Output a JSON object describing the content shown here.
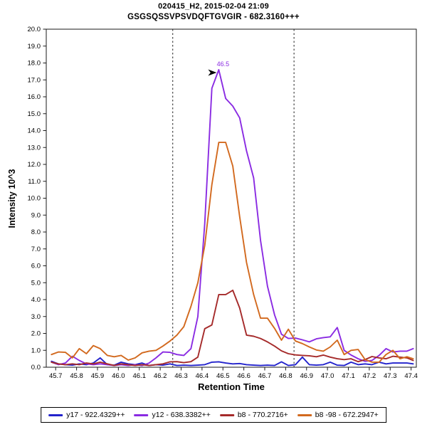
{
  "header": {
    "title": "020415_H2, 2015-02-04 21:09",
    "subtitle": "GSGSQSSVPSVDQFTGVGIR - 682.3160+++"
  },
  "chart_data": {
    "type": "line",
    "title": "020415_H2, 2015-02-04 21:09",
    "subtitle": "GSGSQSSVPSVDQFTGVGIR - 682.3160+++",
    "xlabel": "Retention Time",
    "ylabel": "Intensity 10^3",
    "xlim": [
      45.655,
      47.425
    ],
    "ylim": [
      0,
      20
    ],
    "x_ticks": [
      45.7,
      45.8,
      45.9,
      46.0,
      46.1,
      46.2,
      46.3,
      46.4,
      46.5,
      46.6,
      46.7,
      46.8,
      46.9,
      47.0,
      47.1,
      47.2,
      47.3,
      47.4
    ],
    "y_ticks": [
      0.0,
      1.0,
      2.0,
      3.0,
      4.0,
      5.0,
      6.0,
      7.0,
      8.0,
      9.0,
      10.0,
      11.0,
      12.0,
      13.0,
      14.0,
      15.0,
      16.0,
      17.0,
      18.0,
      19.0,
      20.0
    ],
    "grid": false,
    "legend_position": "bottom",
    "peak_boundaries": [
      46.26,
      46.84
    ],
    "peak_annotation": {
      "label": "46.5",
      "x": 46.48,
      "y": 17.6
    },
    "x": [
      45.68,
      45.713,
      45.747,
      45.78,
      45.813,
      45.847,
      45.88,
      45.913,
      45.947,
      45.98,
      46.013,
      46.047,
      46.08,
      46.113,
      46.147,
      46.18,
      46.213,
      46.247,
      46.28,
      46.313,
      46.347,
      46.38,
      46.413,
      46.447,
      46.48,
      46.513,
      46.547,
      46.58,
      46.613,
      46.647,
      46.68,
      46.713,
      46.747,
      46.78,
      46.813,
      46.847,
      46.88,
      46.913,
      46.947,
      46.98,
      47.013,
      47.047,
      47.08,
      47.113,
      47.147,
      47.18,
      47.213,
      47.247,
      47.28,
      47.313,
      47.347,
      47.38,
      47.41
    ],
    "series": [
      {
        "name": "y17 - 922.4329++",
        "color": "#2323CC",
        "values": [
          0.35,
          0.2,
          0.15,
          0.12,
          0.2,
          0.15,
          0.25,
          0.55,
          0.15,
          0.12,
          0.3,
          0.2,
          0.15,
          0.25,
          0.1,
          0.15,
          0.12,
          0.2,
          0.1,
          0.12,
          0.1,
          0.12,
          0.15,
          0.3,
          0.32,
          0.25,
          0.2,
          0.22,
          0.15,
          0.12,
          0.1,
          0.12,
          0.1,
          0.32,
          0.1,
          0.15,
          0.6,
          0.15,
          0.12,
          0.15,
          0.3,
          0.12,
          0.1,
          0.3,
          0.15,
          0.2,
          0.15,
          0.3,
          0.2,
          0.25,
          0.25,
          0.25,
          0.2
        ]
      },
      {
        "name": "y12 - 638.3382++",
        "color": "#8A2BE2",
        "values": [
          0.3,
          0.15,
          0.25,
          0.65,
          0.4,
          0.2,
          0.15,
          0.2,
          0.15,
          0.1,
          0.15,
          0.1,
          0.15,
          0.1,
          0.25,
          0.55,
          0.9,
          0.88,
          0.75,
          0.7,
          1.1,
          3.0,
          8.5,
          16.5,
          17.6,
          15.9,
          15.45,
          14.75,
          12.8,
          11.2,
          7.5,
          4.8,
          3.1,
          1.95,
          1.7,
          1.72,
          1.62,
          1.5,
          1.68,
          1.75,
          1.8,
          2.35,
          1.0,
          0.72,
          0.5,
          0.35,
          0.4,
          0.7,
          1.1,
          0.9,
          0.95,
          0.95,
          1.1
        ]
      },
      {
        "name": "b8 - 770.2716+",
        "color": "#A52A2A",
        "values": [
          0.3,
          0.2,
          0.15,
          0.2,
          0.15,
          0.25,
          0.2,
          0.3,
          0.2,
          0.1,
          0.2,
          0.15,
          0.1,
          0.15,
          0.1,
          0.15,
          0.2,
          0.32,
          0.33,
          0.27,
          0.33,
          0.6,
          2.28,
          2.5,
          4.3,
          4.3,
          4.55,
          3.5,
          1.9,
          1.83,
          1.7,
          1.5,
          1.25,
          0.97,
          0.8,
          0.73,
          0.7,
          0.68,
          0.62,
          0.72,
          0.6,
          0.5,
          0.45,
          0.5,
          0.33,
          0.45,
          0.63,
          0.55,
          0.5,
          0.65,
          0.6,
          0.55,
          0.4
        ]
      },
      {
        "name": "b8 -98 - 672.2947+",
        "color": "#D2691E",
        "values": [
          0.75,
          0.9,
          0.88,
          0.55,
          1.1,
          0.8,
          1.28,
          1.1,
          0.7,
          0.62,
          0.7,
          0.42,
          0.55,
          0.85,
          0.95,
          1.0,
          1.25,
          1.55,
          1.9,
          2.4,
          3.6,
          5.0,
          7.2,
          10.8,
          13.3,
          13.3,
          11.9,
          8.9,
          6.2,
          4.3,
          2.9,
          2.9,
          2.3,
          1.6,
          2.25,
          1.55,
          1.4,
          1.2,
          1.02,
          0.95,
          1.2,
          1.6,
          0.75,
          1.0,
          1.05,
          0.45,
          0.3,
          0.3,
          0.75,
          1.0,
          0.5,
          0.62,
          0.5
        ]
      }
    ]
  }
}
